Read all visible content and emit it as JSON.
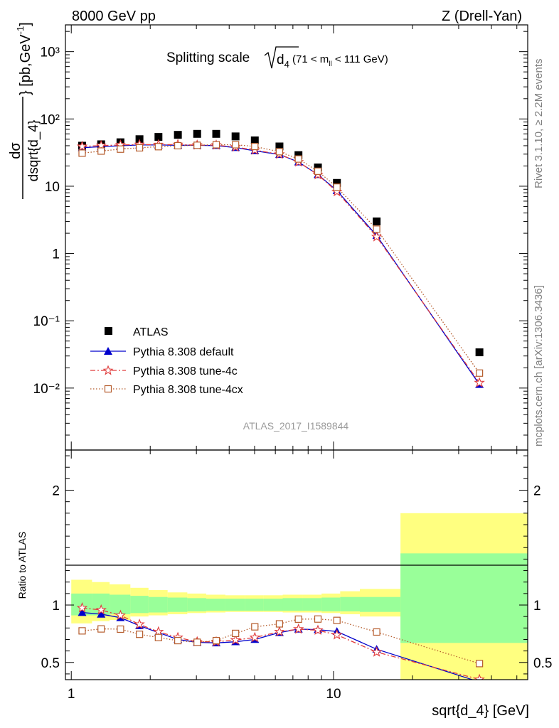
{
  "header": {
    "left": "8000 GeV pp",
    "right": "Z (Drell-Yan)"
  },
  "side": {
    "rivet": "Rivet 3.1.10, ≥ 2.2M events",
    "mcplots": "mcplots.cern.ch [arXiv:1306.3436]"
  },
  "chart_data": [
    {
      "type": "scatter",
      "title": "Splitting scale",
      "title_math": "√d₄ (71 < mₗₗ < 111 GeV)",
      "ylabel": "dσ/dsqrt{d_4} [pb,GeV⁻¹]",
      "xlabel": "",
      "xscale": "log",
      "yscale": "log",
      "xlim": [
        0.95,
        55
      ],
      "ylim": [
        0.0012,
        2500
      ],
      "watermark": "ATLAS_2017_I1589844",
      "ytick_labels": [
        "10⁻²",
        "10⁻¹",
        "1",
        "10",
        "10²",
        "10³"
      ],
      "legend_position": "lower-left",
      "x": [
        1.1,
        1.3,
        1.54,
        1.82,
        2.15,
        2.55,
        3.02,
        3.57,
        4.23,
        5.01,
        6.22,
        7.35,
        8.72,
        10.3,
        14.6,
        36.0
      ],
      "series": [
        {
          "name": "ATLAS",
          "values": [
            40,
            42,
            45,
            50,
            54,
            58,
            60,
            60,
            55,
            48,
            39,
            29,
            19,
            11.2,
            3.0,
            0.034
          ]
        },
        {
          "name": "Pythia 8.308 default",
          "values": [
            37.4,
            38.6,
            40,
            41,
            41,
            40.6,
            40.5,
            40.2,
            37.5,
            33.6,
            29.6,
            22.9,
            14.9,
            8.6,
            1.85,
            0.0113
          ]
        },
        {
          "name": "Pythia 8.308 tune-4c",
          "values": [
            39,
            40.2,
            41,
            41.6,
            41.4,
            41.6,
            40.8,
            40.8,
            38.2,
            34.4,
            29.9,
            22.9,
            14.8,
            8.3,
            1.77,
            0.012
          ]
        },
        {
          "name": "Pythia 8.308 tune-4cx",
          "values": [
            31,
            33.3,
            35.6,
            37.2,
            38.7,
            40,
            40.6,
            41.4,
            41.4,
            38.9,
            32.6,
            25.4,
            16.7,
            9.7,
            2.3,
            0.0167
          ]
        }
      ],
      "colors": {
        "ATLAS": "#000000",
        "default": "#0000cc",
        "tune4c": "#e03c3c",
        "tune4cx": "#b55c2c"
      }
    },
    {
      "type": "line",
      "ylabel": "Ratio to ATLAS",
      "xlabel": "sqrt{d_4} [GeV]",
      "xscale": "log",
      "xlim": [
        0.95,
        55
      ],
      "ylim": [
        0.35,
        2.35
      ],
      "xtick_labels": [
        "1",
        "10"
      ],
      "ytick_labels": [
        "0.5",
        "1",
        "2"
      ],
      "bins": [
        1.0,
        1.2,
        1.4,
        1.68,
        1.97,
        2.33,
        2.77,
        3.27,
        3.87,
        4.6,
        5.42,
        6.4,
        7.6,
        9.0,
        10.6,
        12.6,
        18.0,
        55
      ],
      "band_inner": [
        [
          0.91,
          1.1
        ],
        [
          0.91,
          1.1
        ],
        [
          0.92,
          1.09
        ],
        [
          0.93,
          1.08
        ],
        [
          0.935,
          1.07
        ],
        [
          0.94,
          1.065
        ],
        [
          0.945,
          1.06
        ],
        [
          0.95,
          1.055
        ],
        [
          0.95,
          1.055
        ],
        [
          0.95,
          1.055
        ],
        [
          0.95,
          1.055
        ],
        [
          0.95,
          1.06
        ],
        [
          0.95,
          1.06
        ],
        [
          0.945,
          1.065
        ],
        [
          0.945,
          1.07
        ],
        [
          0.94,
          1.07
        ],
        [
          0.67,
          1.45
        ]
      ],
      "band_outer": [
        [
          0.84,
          1.22
        ],
        [
          0.86,
          1.2
        ],
        [
          0.87,
          1.18
        ],
        [
          0.9,
          1.15
        ],
        [
          0.91,
          1.13
        ],
        [
          0.92,
          1.11
        ],
        [
          0.93,
          1.1
        ],
        [
          0.935,
          1.09
        ],
        [
          0.94,
          1.085
        ],
        [
          0.94,
          1.085
        ],
        [
          0.94,
          1.085
        ],
        [
          0.935,
          1.09
        ],
        [
          0.935,
          1.09
        ],
        [
          0.93,
          1.1
        ],
        [
          0.92,
          1.12
        ],
        [
          0.9,
          1.14
        ],
        [
          0.35,
          1.8
        ]
      ],
      "x": [
        1.1,
        1.3,
        1.54,
        1.82,
        2.15,
        2.55,
        3.02,
        3.57,
        4.23,
        5.01,
        6.22,
        7.35,
        8.72,
        10.3,
        14.6,
        36.0
      ],
      "series": [
        {
          "name": "Pythia 8.308 default",
          "values": [
            0.935,
            0.92,
            0.89,
            0.82,
            0.76,
            0.7,
            0.675,
            0.67,
            0.68,
            0.7,
            0.76,
            0.79,
            0.785,
            0.77,
            0.615,
            0.33
          ]
        },
        {
          "name": "Pythia 8.308 tune-4c",
          "values": [
            0.975,
            0.957,
            0.91,
            0.832,
            0.767,
            0.717,
            0.68,
            0.68,
            0.695,
            0.717,
            0.767,
            0.79,
            0.78,
            0.74,
            0.59,
            0.352
          ]
        },
        {
          "name": "Pythia 8.308 tune-4cx",
          "values": [
            0.775,
            0.792,
            0.79,
            0.745,
            0.717,
            0.69,
            0.676,
            0.69,
            0.753,
            0.81,
            0.836,
            0.877,
            0.878,
            0.866,
            0.765,
            0.49
          ]
        }
      ]
    }
  ]
}
